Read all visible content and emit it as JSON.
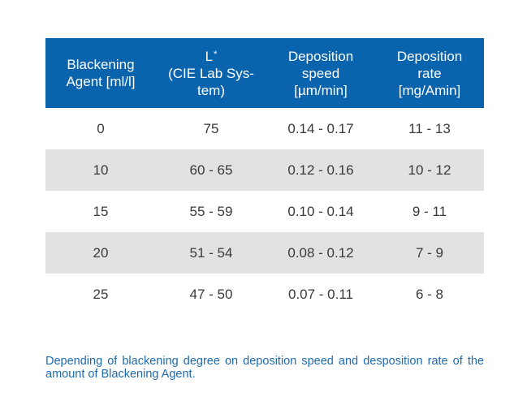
{
  "table": {
    "headers": [
      {
        "lines": [
          "Blackening",
          "Agent [ml/l]"
        ]
      },
      {
        "lines": [
          "L",
          "(CIE Lab Sys-",
          "tem)"
        ],
        "superscript": "*"
      },
      {
        "lines": [
          "Deposition",
          "speed",
          "[µm/min]"
        ]
      },
      {
        "lines": [
          "Deposition",
          "rate",
          "[mg/Amin]"
        ]
      }
    ],
    "rows": [
      [
        "0",
        "75",
        "0.14 - 0.17",
        "11 - 13"
      ],
      [
        "10",
        "60 - 65",
        "0.12 - 0.16",
        "10 - 12"
      ],
      [
        "15",
        "55 - 59",
        "0.10 - 0.14",
        "9 - 11"
      ],
      [
        "20",
        "51 - 54",
        "0.08 - 0.12",
        "7 - 9"
      ],
      [
        "25",
        "47 - 50",
        "0.07 - 0.11",
        "6 - 8"
      ]
    ]
  },
  "caption": "Depending of blackening degree on deposition speed and desposition rate of the amount of Blackening Agent.",
  "colors": {
    "header_bg": "#0a64ad",
    "header_text": "#ffffff",
    "stripe": "#e2e2e2",
    "body_text": "#3a3a3a",
    "caption_text": "#1e6bb0"
  }
}
